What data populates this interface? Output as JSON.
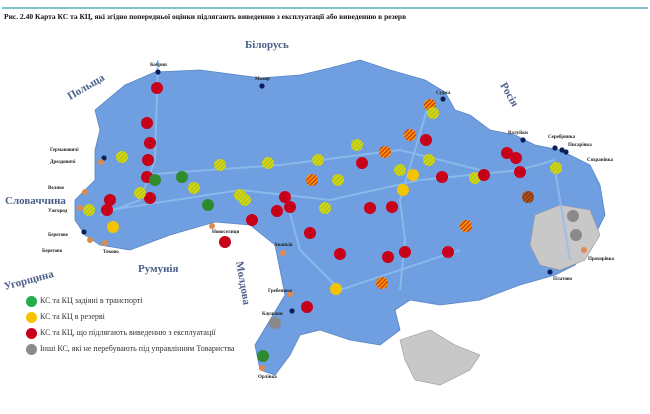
{
  "caption": "Рис. 2.40 Карта КС та КЦ, які згідно попередньої оцінки підлягають виведенню з експлуатації або виведенню в резерв",
  "countries": {
    "belarus": "Білорусь",
    "poland": "Польща",
    "russia": "Росія",
    "slovakia": "Словаччина",
    "hungary": "Угорщина",
    "romania": "Румунія",
    "moldova": "Молдова"
  },
  "points": [
    "Кобрин",
    "Мозир",
    "Суджа",
    "Валуйки",
    "Серебрянка",
    "Писарівка",
    "Сохранівка",
    "Прохорівка",
    "Платово",
    "Германовичі",
    "Дроздовичі",
    "Велике",
    "Ужгород",
    "Берегове",
    "Берегово",
    "Теково",
    "Новоселиця",
    "Ананьїв",
    "Гребеники",
    "Каушани",
    "Орлівка"
  ],
  "legend": [
    {
      "label": "КС та КЦ задіяні в транспорті",
      "color": "#1fae4b"
    },
    {
      "label": "КС та КЦ в резерві",
      "color": "#f5c400"
    },
    {
      "label": "КС та КЦ, що підлягають виведенню з експлуатації",
      "color": "#c8001a"
    },
    {
      "label": "Інші КС, які не перебувають під управлінням Товариства",
      "color": "#8a8a8a"
    }
  ],
  "colors": {
    "land": "#6f9fe0",
    "other": "#c8c8c8",
    "pipe": "#8fc0ee"
  }
}
